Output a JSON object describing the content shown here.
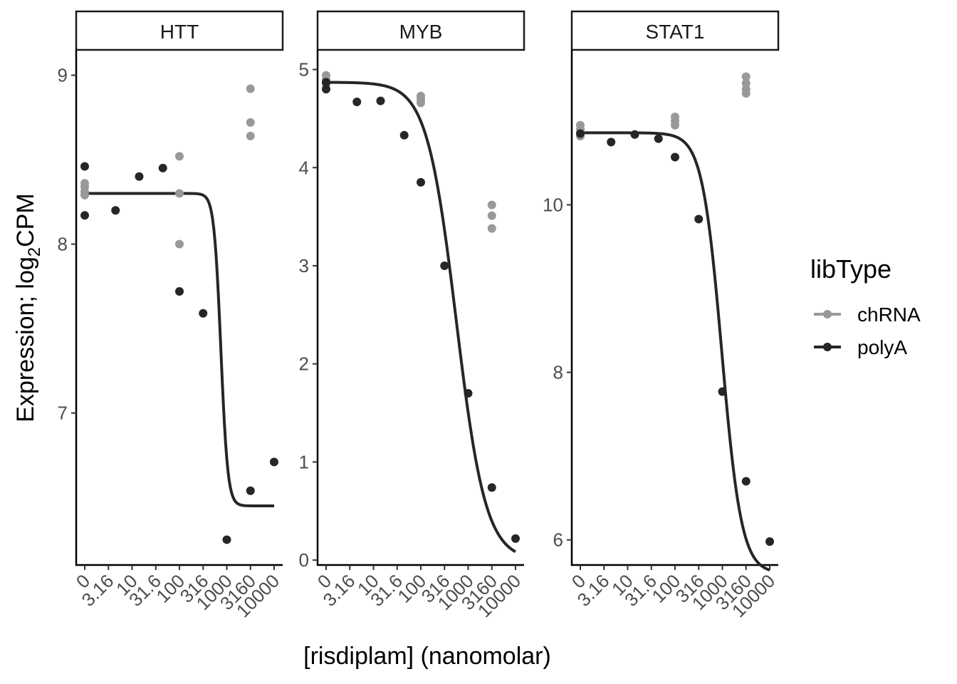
{
  "chart_data": {
    "type": "scatter",
    "xlabel": "[risdiplam] (nanomolar)",
    "ylabel_main": "Expression; log",
    "ylabel_sub": "2",
    "ylabel_tail": "CPM",
    "x_categories": [
      "0",
      "3.16",
      "10",
      "31.6",
      "100",
      "316",
      "1000",
      "3160",
      "10000"
    ],
    "legend": {
      "title": "libType",
      "position": "right",
      "entries": [
        {
          "name": "chRNA",
          "color": "#999999"
        },
        {
          "name": "polyA",
          "color": "#262626"
        }
      ]
    },
    "colors": {
      "chRNA": "#999999",
      "polyA": "#262626",
      "fit": "#262626"
    },
    "grid": false,
    "panels": [
      {
        "name": "HTT",
        "ylim": [
          6.1,
          9.15
        ],
        "yticks": [
          7,
          8,
          9
        ],
        "fit": {
          "bottom": 6.45,
          "top": 8.3,
          "ec50_index": 5.75,
          "hill": 6
        },
        "series": {
          "chRNA": [
            [
              0,
              8.36
            ],
            [
              0,
              8.34
            ],
            [
              0,
              8.31
            ],
            [
              0,
              8.29
            ],
            [
              4,
              8.52
            ],
            [
              4,
              8.3
            ],
            [
              4,
              8.0
            ],
            [
              7,
              8.92
            ],
            [
              7,
              8.72
            ],
            [
              7,
              8.64
            ]
          ],
          "polyA": [
            [
              0,
              8.46
            ],
            [
              0,
              8.17
            ],
            [
              1.3,
              8.2
            ],
            [
              2.3,
              8.4
            ],
            [
              3.3,
              8.45
            ],
            [
              4,
              7.72
            ],
            [
              5,
              7.59
            ],
            [
              6,
              6.25
            ],
            [
              7,
              6.54
            ],
            [
              8,
              6.71
            ]
          ]
        }
      },
      {
        "name": "MYB",
        "ylim": [
          -0.05,
          5.2
        ],
        "yticks": [
          0,
          1,
          2,
          3,
          4,
          5
        ],
        "fit": {
          "bottom": 0,
          "top": 4.87,
          "ec50_index": 5.5,
          "hill": 1.4
        },
        "series": {
          "chRNA": [
            [
              0,
              4.94
            ],
            [
              0,
              4.9
            ],
            [
              0,
              4.85
            ],
            [
              4,
              4.73
            ],
            [
              4,
              4.7
            ],
            [
              4,
              4.66
            ],
            [
              7,
              3.62
            ],
            [
              7,
              3.51
            ],
            [
              7,
              3.38
            ]
          ],
          "polyA": [
            [
              0,
              4.87
            ],
            [
              0,
              4.8
            ],
            [
              1.3,
              4.67
            ],
            [
              2.3,
              4.68
            ],
            [
              3.3,
              4.33
            ],
            [
              4,
              3.85
            ],
            [
              5,
              3.0
            ],
            [
              6,
              1.7
            ],
            [
              7,
              0.74
            ],
            [
              8,
              0.22
            ]
          ]
        }
      },
      {
        "name": "STAT1",
        "ylim": [
          5.7,
          11.85
        ],
        "yticks": [
          6,
          8,
          10
        ],
        "fit": {
          "bottom": 5.6,
          "top": 10.86,
          "ec50_index": 5.98,
          "hill": 2.1
        },
        "series": {
          "chRNA": [
            [
              0,
              10.95
            ],
            [
              0,
              10.9
            ],
            [
              0,
              10.86
            ],
            [
              0,
              10.82
            ],
            [
              4,
              11.05
            ],
            [
              4,
              11.0
            ],
            [
              4,
              10.95
            ],
            [
              7,
              11.53
            ],
            [
              7,
              11.45
            ],
            [
              7,
              11.38
            ],
            [
              7,
              11.33
            ]
          ],
          "polyA": [
            [
              0,
              10.85
            ],
            [
              1.3,
              10.75
            ],
            [
              2.3,
              10.84
            ],
            [
              3.3,
              10.79
            ],
            [
              4,
              10.57
            ],
            [
              5,
              9.83
            ],
            [
              6,
              7.77
            ],
            [
              7,
              6.7
            ],
            [
              8,
              5.98
            ]
          ]
        }
      }
    ]
  }
}
